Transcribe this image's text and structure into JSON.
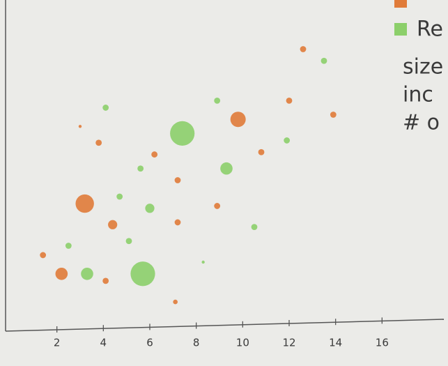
{
  "chart_data": {
    "type": "scatter",
    "xlim": [
      0,
      18.6
    ],
    "ylim": [
      0,
      14
    ],
    "xticks": [
      2,
      4,
      6,
      8,
      10,
      12,
      14,
      16
    ],
    "series": [
      {
        "color": "#e07b39",
        "x": [
          12.6,
          12.0,
          13.9,
          9.8,
          3.0,
          3.8,
          10.8,
          6.2,
          7.2,
          3.2,
          8.9,
          4.4,
          7.2,
          1.4,
          2.2,
          4.1,
          7.1
        ],
        "values": [
          11.9,
          9.7,
          9.1,
          8.9,
          8.6,
          7.9,
          7.5,
          7.4,
          6.3,
          5.3,
          5.2,
          4.4,
          4.5,
          3.1,
          2.3,
          2.0,
          1.1
        ],
        "sizes": [
          2,
          2,
          2,
          5,
          1,
          2,
          2,
          2,
          2,
          6,
          2,
          3,
          2,
          2,
          4,
          2,
          1.5
        ]
      },
      {
        "name": "Re",
        "color": "#8ccf6a",
        "x": [
          13.5,
          8.9,
          4.1,
          7.4,
          11.9,
          9.3,
          5.6,
          4.7,
          6.0,
          10.5,
          5.1,
          2.5,
          8.3,
          3.3,
          5.7
        ],
        "values": [
          11.4,
          9.7,
          9.4,
          8.3,
          8.0,
          6.8,
          6.8,
          5.6,
          5.1,
          4.3,
          3.7,
          3.5,
          2.8,
          2.3,
          2.3
        ],
        "sizes": [
          2,
          2,
          2,
          8,
          2,
          4,
          2,
          2,
          3,
          2,
          2,
          2,
          1,
          4,
          8
        ]
      }
    ],
    "notes": [
      "size",
      "inc",
      "# o"
    ]
  }
}
